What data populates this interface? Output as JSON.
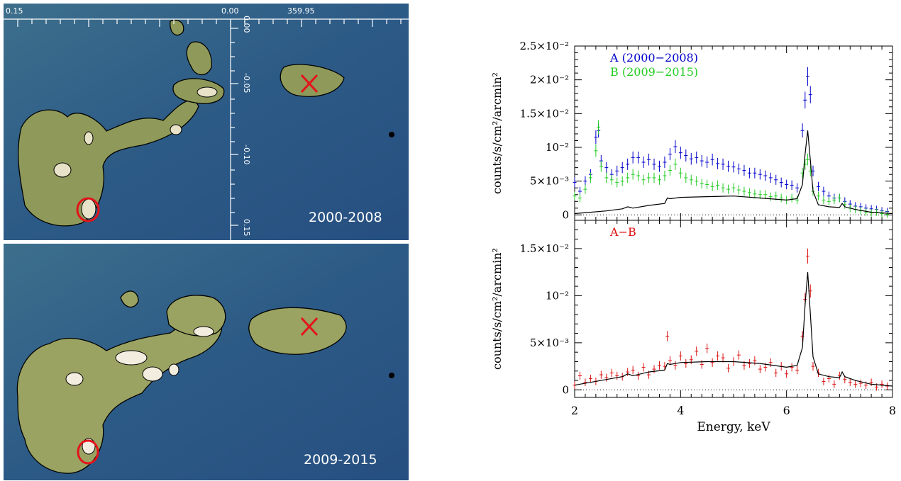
{
  "maps": {
    "panels": [
      {
        "label": "2000-2008"
      },
      {
        "label": "2009-2015"
      }
    ],
    "ra_ticks": [
      "0.15",
      "0.00",
      "359.95"
    ],
    "dec_ticks": [
      "0.00",
      "-0.05",
      "-0.10",
      "0.15"
    ],
    "colors": {
      "background": "#2f5f8a",
      "emission": "#b9b06a",
      "peak": "#ffffff",
      "contour": "#000000",
      "marker": "#e3141a"
    }
  },
  "chart_data": [
    {
      "type": "scatter",
      "panel": "top",
      "xlim": [
        2,
        8
      ],
      "ylim": [
        -0.0008,
        0.025
      ],
      "xticks": [
        "2",
        "4",
        "6",
        "8"
      ],
      "ytick_labels": [
        "0",
        "5×10⁻³",
        "10⁻²",
        "1.5×10⁻²",
        "2×10⁻²",
        "2.5×10⁻²"
      ],
      "ytick_values": [
        0,
        0.005,
        0.01,
        0.015,
        0.02,
        0.025
      ],
      "ylabel": "counts/s/cm²/arcmin²",
      "baseline": "dotted at 0",
      "legend": "top-left",
      "series": [
        {
          "name": "A (2000−2008)",
          "color": "#0000cc",
          "x": [
            2.0,
            2.1,
            2.2,
            2.3,
            2.4,
            2.45,
            2.5,
            2.6,
            2.7,
            2.8,
            2.9,
            3.0,
            3.1,
            3.2,
            3.3,
            3.4,
            3.5,
            3.6,
            3.7,
            3.8,
            3.9,
            4.0,
            4.1,
            4.2,
            4.3,
            4.4,
            4.5,
            4.6,
            4.7,
            4.8,
            4.9,
            5.0,
            5.1,
            5.2,
            5.3,
            5.4,
            5.5,
            5.6,
            5.7,
            5.8,
            5.9,
            6.0,
            6.1,
            6.2,
            6.3,
            6.35,
            6.4,
            6.45,
            6.5,
            6.6,
            6.7,
            6.8,
            6.9,
            7.0,
            7.1,
            7.2,
            7.3,
            7.4,
            7.5,
            7.6,
            7.7,
            7.8,
            7.9
          ],
          "y": [
            0.0048,
            0.0035,
            0.005,
            0.006,
            0.0115,
            0.0125,
            0.008,
            0.007,
            0.006,
            0.0065,
            0.007,
            0.0075,
            0.0085,
            0.0085,
            0.0078,
            0.0082,
            0.0075,
            0.0072,
            0.0078,
            0.009,
            0.0101,
            0.0092,
            0.0088,
            0.0083,
            0.0085,
            0.008,
            0.0078,
            0.0082,
            0.0076,
            0.0075,
            0.0072,
            0.0071,
            0.0068,
            0.0066,
            0.0062,
            0.0062,
            0.006,
            0.0058,
            0.0055,
            0.0052,
            0.0048,
            0.0045,
            0.0044,
            0.004,
            0.0125,
            0.017,
            0.0205,
            0.0178,
            0.0065,
            0.0042,
            0.0035,
            0.0028,
            0.0025,
            0.0025,
            0.002,
            0.0016,
            0.0013,
            0.0012,
            0.001,
            0.0009,
            0.0008,
            0.0006,
            0.0005
          ]
        },
        {
          "name": "B (2009−2015)",
          "color": "#22cc22",
          "x": [
            2.0,
            2.1,
            2.2,
            2.3,
            2.4,
            2.45,
            2.5,
            2.6,
            2.7,
            2.8,
            2.9,
            3.0,
            3.1,
            3.2,
            3.3,
            3.4,
            3.5,
            3.6,
            3.7,
            3.8,
            3.9,
            4.0,
            4.1,
            4.2,
            4.3,
            4.4,
            4.5,
            4.6,
            4.7,
            4.8,
            4.9,
            5.0,
            5.1,
            5.2,
            5.3,
            5.4,
            5.5,
            5.6,
            5.7,
            5.8,
            5.9,
            6.0,
            6.1,
            6.2,
            6.3,
            6.35,
            6.4,
            6.45,
            6.5,
            6.6,
            6.7,
            6.8,
            6.9,
            7.0,
            7.1,
            7.2,
            7.3,
            7.4,
            7.5,
            7.6,
            7.7,
            7.8,
            7.9
          ],
          "y": [
            0.0028,
            0.0025,
            0.0038,
            0.0055,
            0.0095,
            0.013,
            0.0072,
            0.0055,
            0.0052,
            0.0048,
            0.005,
            0.0055,
            0.006,
            0.0058,
            0.0052,
            0.0055,
            0.0055,
            0.0052,
            0.0058,
            0.0066,
            0.0075,
            0.0062,
            0.0055,
            0.0052,
            0.005,
            0.0046,
            0.0045,
            0.0042,
            0.0044,
            0.004,
            0.0038,
            0.004,
            0.0037,
            0.0035,
            0.0033,
            0.0031,
            0.003,
            0.003,
            0.0027,
            0.0028,
            0.0025,
            0.0022,
            0.0025,
            0.0022,
            0.0062,
            0.0075,
            0.0082,
            0.0065,
            0.0035,
            0.0028,
            0.0022,
            0.002,
            0.0022,
            0.0025,
            0.0015,
            0.001,
            0.0008,
            0.0006,
            0.0004,
            0.0003,
            0.0004,
            0.0002,
            0.0001
          ]
        },
        {
          "name": "",
          "style": "line",
          "color": "#000000",
          "x": [
            2.0,
            2.3,
            2.6,
            2.9,
            3.0,
            3.1,
            3.4,
            3.7,
            3.75,
            3.8,
            4.0,
            4.5,
            5.0,
            5.5,
            6.0,
            6.2,
            6.3,
            6.35,
            6.4,
            6.45,
            6.5,
            6.6,
            6.8,
            7.0,
            7.05,
            7.1,
            7.3,
            7.6,
            8.0
          ],
          "y": [
            0.0002,
            0.0004,
            0.0006,
            0.0009,
            0.0012,
            0.001,
            0.0014,
            0.0017,
            0.0025,
            0.0024,
            0.0026,
            0.0027,
            0.0028,
            0.0025,
            0.0022,
            0.0024,
            0.0045,
            0.009,
            0.0125,
            0.008,
            0.0035,
            0.0015,
            0.0012,
            0.0011,
            0.0017,
            0.0012,
            0.0008,
            0.0004,
            0.0002
          ]
        }
      ]
    },
    {
      "type": "scatter",
      "panel": "bottom",
      "xlim": [
        2,
        8
      ],
      "ylim": [
        -0.0008,
        0.018
      ],
      "xticks": [
        "2",
        "4",
        "6",
        "8"
      ],
      "ytick_labels": [
        "0",
        "5×10⁻³",
        "10⁻²",
        "1.5×10⁻²"
      ],
      "ytick_values": [
        0,
        0.005,
        0.01,
        0.015
      ],
      "xlabel": "Energy, keV",
      "ylabel": "counts/s/cm²/arcmin²",
      "baseline": "dotted at 0",
      "legend": "top-left",
      "series": [
        {
          "name": "A−B",
          "color": "#dd1111",
          "x": [
            2.0,
            2.1,
            2.2,
            2.3,
            2.4,
            2.5,
            2.6,
            2.7,
            2.8,
            2.9,
            3.0,
            3.1,
            3.2,
            3.3,
            3.4,
            3.5,
            3.6,
            3.7,
            3.75,
            3.8,
            3.9,
            4.0,
            4.1,
            4.2,
            4.3,
            4.4,
            4.5,
            4.6,
            4.7,
            4.8,
            4.9,
            5.0,
            5.1,
            5.2,
            5.3,
            5.4,
            5.5,
            5.6,
            5.7,
            5.8,
            5.9,
            6.0,
            6.1,
            6.2,
            6.3,
            6.35,
            6.4,
            6.45,
            6.5,
            6.6,
            6.7,
            6.8,
            6.9,
            7.0,
            7.1,
            7.2,
            7.3,
            7.4,
            7.5,
            7.6,
            7.7,
            7.8,
            7.9
          ],
          "y": [
            0.0005,
            0.0015,
            0.0008,
            0.0012,
            0.0009,
            0.0016,
            0.0013,
            0.0018,
            0.0015,
            0.0014,
            0.0019,
            0.0021,
            0.0015,
            0.0024,
            0.0016,
            0.0022,
            0.0026,
            0.0025,
            0.0057,
            0.0031,
            0.0026,
            0.0036,
            0.0028,
            0.0032,
            0.0041,
            0.0027,
            0.0044,
            0.0029,
            0.0036,
            0.0034,
            0.0023,
            0.003,
            0.0037,
            0.0026,
            0.0028,
            0.0031,
            0.0022,
            0.0024,
            0.0029,
            0.0018,
            0.0025,
            0.0017,
            0.0024,
            0.0021,
            0.0057,
            0.0096,
            0.0142,
            0.0105,
            0.0025,
            0.0018,
            0.0009,
            0.0012,
            0.0006,
            0.0015,
            0.0011,
            0.0008,
            0.0006,
            0.0007,
            0.0005,
            0.0008,
            0.0003,
            0.0006,
            0.0004
          ]
        },
        {
          "name": "",
          "style": "line",
          "color": "#000000",
          "x": [
            2.0,
            2.3,
            2.6,
            2.9,
            3.0,
            3.1,
            3.4,
            3.7,
            3.75,
            3.8,
            4.0,
            4.5,
            5.0,
            5.5,
            6.0,
            6.2,
            6.3,
            6.35,
            6.4,
            6.45,
            6.5,
            6.6,
            6.8,
            7.0,
            7.05,
            7.1,
            7.3,
            7.6,
            8.0
          ],
          "y": [
            0.0005,
            0.0008,
            0.0011,
            0.0014,
            0.0017,
            0.0015,
            0.0019,
            0.0021,
            0.0028,
            0.0027,
            0.0029,
            0.003,
            0.003,
            0.0028,
            0.0024,
            0.0026,
            0.0045,
            0.009,
            0.0125,
            0.008,
            0.0035,
            0.0017,
            0.0014,
            0.0013,
            0.0019,
            0.0014,
            0.001,
            0.0006,
            0.0004
          ]
        }
      ]
    }
  ]
}
